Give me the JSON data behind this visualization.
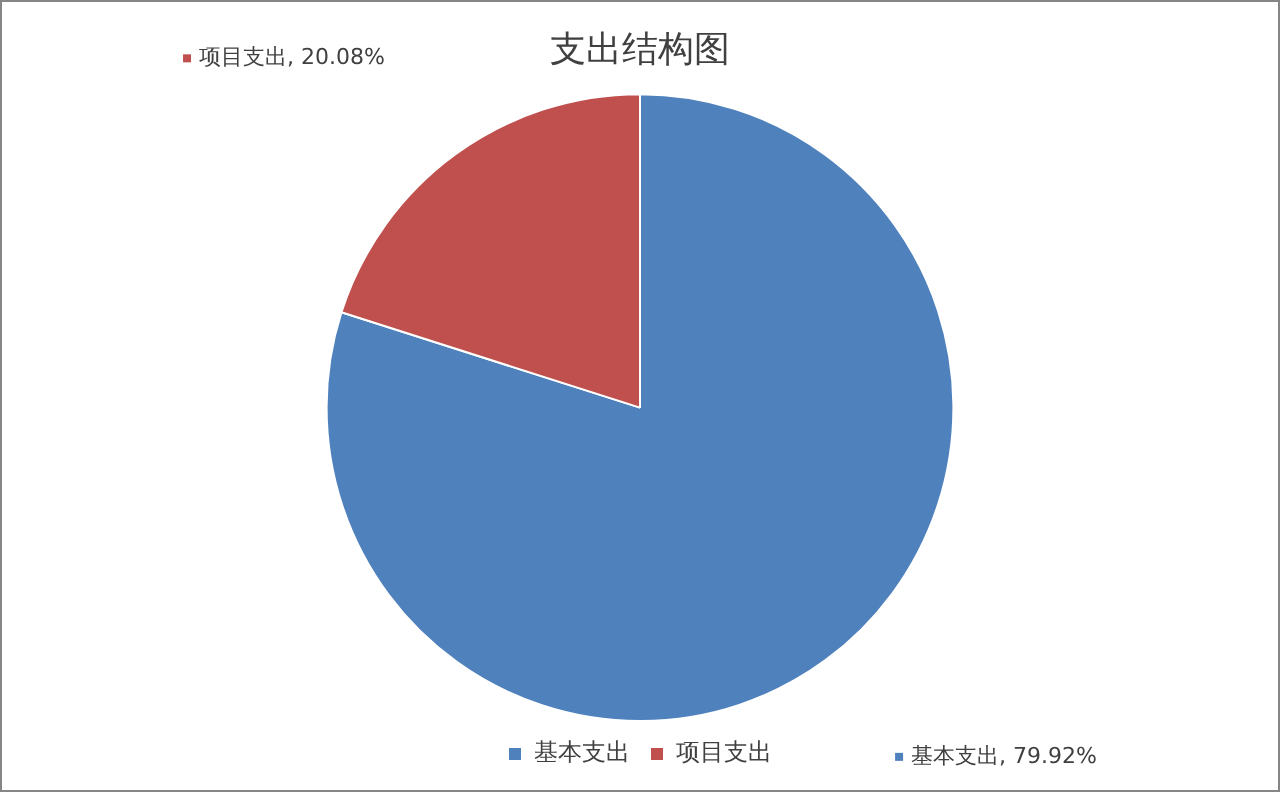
{
  "chart_data": {
    "type": "pie",
    "title": "支出结构图",
    "categories": [
      "基本支出",
      "项目支出"
    ],
    "values": [
      79.92,
      20.08
    ],
    "colors": [
      "#4f81bd",
      "#c0504d"
    ],
    "value_labels": [
      "基本支出, 79.92%",
      "项目支出, 20.08%"
    ],
    "legend": "bottom"
  }
}
